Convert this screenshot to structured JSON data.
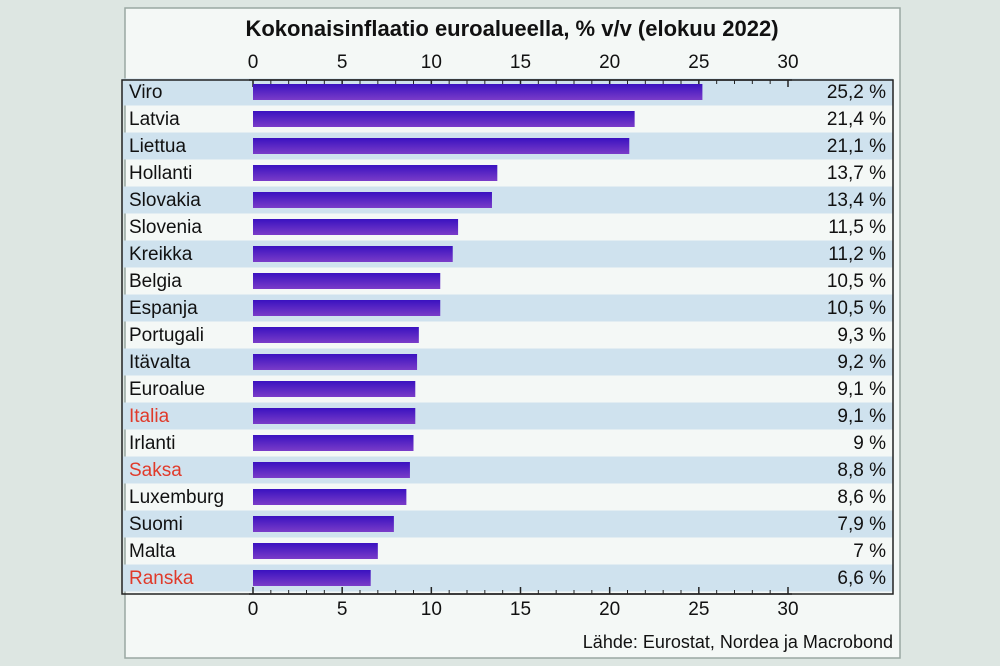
{
  "chart_data": {
    "type": "bar",
    "orientation": "horizontal",
    "title": "Kokonaisinflaatio euroalueella, % v/v (elokuu 2022)",
    "source": "Lähde: Eurostat, Nordea ja Macrobond",
    "xlim": [
      0,
      30
    ],
    "ticks": [
      0,
      5,
      10,
      15,
      20,
      25,
      30
    ],
    "tick_labels": [
      "0",
      "5",
      "10",
      "15",
      "20",
      "25",
      "30"
    ],
    "categories": [
      "Viro",
      "Latvia",
      "Liettua",
      "Hollanti",
      "Slovakia",
      "Slovenia",
      "Kreikka",
      "Belgia",
      "Espanja",
      "Portugali",
      "Itävalta",
      "Euroalue",
      "Italia",
      "Irlanti",
      "Saksa",
      "Luxemburg",
      "Suomi",
      "Malta",
      "Ranska"
    ],
    "values": [
      25.2,
      21.4,
      21.1,
      13.7,
      13.4,
      11.5,
      11.2,
      10.5,
      10.5,
      9.3,
      9.2,
      9.1,
      9.1,
      9.0,
      8.8,
      8.6,
      7.9,
      7.0,
      6.6
    ],
    "value_labels": [
      "25,2 %",
      "21,4 %",
      "21,1 %",
      "13,7 %",
      "13,4 %",
      "11,5 %",
      "11,2 %",
      "10,5 %",
      "10,5 %",
      "9,3 %",
      "9,2 %",
      "9,1 %",
      "9,1 %",
      "9 %",
      "8,8 %",
      "8,6 %",
      "7,9 %",
      "7 %",
      "6,6 %"
    ],
    "highlighted": [
      "Italia",
      "Saksa",
      "Ranska"
    ],
    "colors": {
      "bar_top": "#3a12c0",
      "bar_bottom": "#7a3cc8",
      "label": "#111111",
      "highlight_label": "#e03a2a",
      "band": "#cfe2ee",
      "panel": "#f4f8f6",
      "border": "#9aa7a2"
    }
  }
}
